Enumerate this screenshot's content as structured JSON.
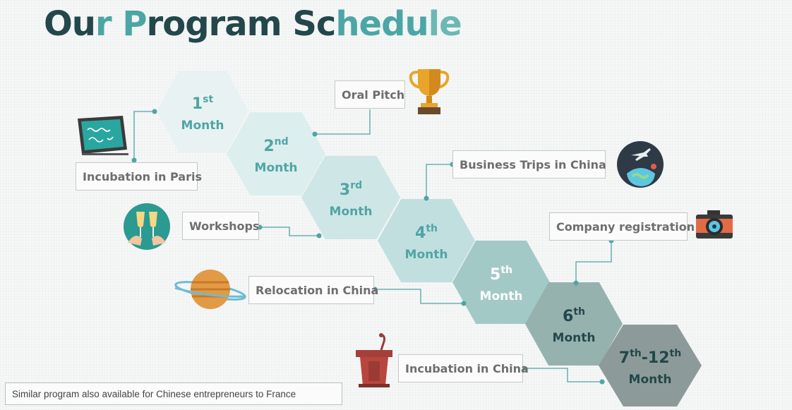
{
  "title": [
    {
      "text": "Ou",
      "color": "#23474b"
    },
    {
      "text": "r P",
      "color": "#4ba6a5"
    },
    {
      "text": "rogram ",
      "color": "#23474b"
    },
    {
      "text": "Sc",
      "color": "#23474b"
    },
    {
      "text": "hedu",
      "color": "#4ba6a5"
    },
    {
      "text": "le",
      "color": "#6bb8b5"
    }
  ],
  "months": [
    {
      "num": "1",
      "sup": "st",
      "label": "Month",
      "fill": "#e9f2f2",
      "text": "#4fa5a4"
    },
    {
      "num": "2",
      "sup": "nd",
      "label": "Month",
      "fill": "#dceeee",
      "text": "#4fa5a4"
    },
    {
      "num": "3",
      "sup": "rd",
      "label": "Month",
      "fill": "#cfe6e6",
      "text": "#4fa5a4"
    },
    {
      "num": "4",
      "sup": "th",
      "label": "Month",
      "fill": "#c2dfdf",
      "text": "#4fa5a4"
    },
    {
      "num": "5",
      "sup": "th",
      "label": "Month",
      "fill": "#a3c9c7",
      "text": "#ffffff"
    },
    {
      "num": "6",
      "sup": "th",
      "label": "Month",
      "fill": "#95b2af",
      "text": "#23474b"
    },
    {
      "num": "7",
      "sup": "th",
      "num2": "-12",
      "sup2": "th",
      "label": "Month",
      "fill": "#8c9b99",
      "text": "#23474b"
    }
  ],
  "activities": [
    {
      "label": "Incubation in Paris",
      "icon": "chalkboard-icon"
    },
    {
      "label": "Oral Pitch",
      "icon": "trophy-icon"
    },
    {
      "label": "Business Trips in China",
      "icon": "airplane-globe-icon"
    },
    {
      "label": "Workshops",
      "icon": "cheers-glasses-icon"
    },
    {
      "label": "Company registration",
      "icon": "camera-icon"
    },
    {
      "label": "Relocation in China",
      "icon": "planet-icon"
    },
    {
      "label": "Incubation in China",
      "icon": "podium-icon"
    }
  ],
  "connector_color": "#4fa5a4",
  "footnote": "Similar program also available for Chinese entrepreneurs to France"
}
